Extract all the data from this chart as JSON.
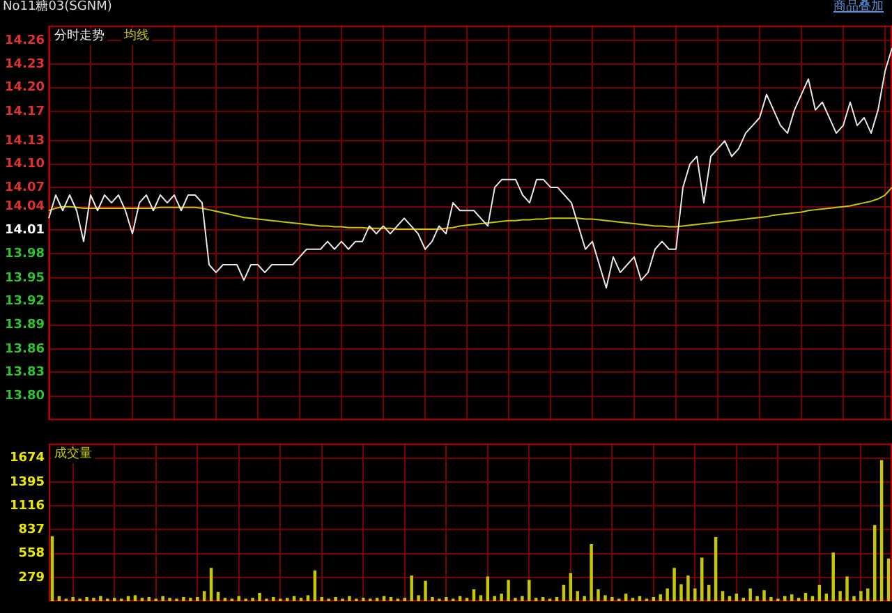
{
  "chart_data": [
    {
      "type": "line",
      "title": "No11糖03(SGNM)",
      "annotations": [
        "商品叠加"
      ],
      "legend": "top left",
      "grid": true,
      "tick_labels": "y",
      "ylim": [
        13.769,
        14.279
      ],
      "yticks": [
        {
          "value": 14.26,
          "label": "14.26"
        },
        {
          "value": 14.229,
          "label": "14.23"
        },
        {
          "value": 14.199,
          "label": "14.20"
        },
        {
          "value": 14.168,
          "label": "14.17"
        },
        {
          "value": 14.13,
          "label": "14.13"
        },
        {
          "value": 14.1,
          "label": "14.10"
        },
        {
          "value": 14.07,
          "label": "14.07"
        },
        {
          "value": 14.045,
          "label": "14.04"
        },
        {
          "value": 14.015,
          "label": "14.01"
        },
        {
          "value": 13.984,
          "label": "13.98"
        },
        {
          "value": 13.953,
          "label": "13.95"
        },
        {
          "value": 13.923,
          "label": "13.92"
        },
        {
          "value": 13.892,
          "label": "13.89"
        },
        {
          "value": 13.861,
          "label": "13.86"
        },
        {
          "value": 13.831,
          "label": "13.83"
        },
        {
          "value": 13.8,
          "label": "13.80"
        }
      ],
      "categories": [
        null,
        null,
        null,
        null,
        null,
        null,
        null,
        null,
        null,
        null,
        null,
        null,
        null,
        null,
        null,
        null,
        null,
        null,
        null,
        null,
        null,
        null,
        null,
        null,
        null,
        null,
        null,
        null,
        null,
        null,
        null,
        null,
        null,
        null,
        null,
        null,
        null,
        null,
        null,
        null,
        null,
        null,
        null,
        null,
        null,
        null,
        null,
        null,
        null,
        null,
        null,
        null,
        null,
        null,
        null,
        null,
        null,
        null,
        null,
        null,
        null,
        null,
        null,
        null,
        null,
        null,
        null,
        null,
        null,
        null,
        null,
        null,
        null,
        null,
        null,
        null,
        null,
        null,
        null,
        null,
        null,
        null,
        null,
        null,
        null,
        null,
        null,
        null,
        null,
        null,
        null,
        null,
        null,
        null,
        null,
        null,
        null,
        null,
        null,
        null,
        null,
        null,
        null,
        null,
        null,
        null,
        null,
        null,
        null,
        null,
        null,
        null,
        null,
        null,
        null,
        null,
        null,
        null,
        null,
        null,
        null,
        null
      ],
      "series": [
        {
          "name": "分时走势",
          "color": "#e8e8e8",
          "values": [
            14.03,
            14.06,
            14.04,
            14.06,
            14.04,
            14.0,
            14.06,
            14.04,
            14.06,
            14.05,
            14.06,
            14.04,
            14.01,
            14.05,
            14.06,
            14.04,
            14.06,
            14.05,
            14.06,
            14.04,
            14.06,
            14.06,
            14.05,
            13.97,
            13.96,
            13.97,
            13.97,
            13.97,
            13.95,
            13.97,
            13.97,
            13.96,
            13.97,
            13.97,
            13.97,
            13.97,
            13.98,
            13.99,
            13.99,
            13.99,
            14.0,
            13.99,
            14.0,
            13.99,
            14.0,
            14.0,
            14.02,
            14.01,
            14.02,
            14.01,
            14.02,
            14.03,
            14.02,
            14.01,
            13.99,
            14.0,
            14.02,
            14.01,
            14.05,
            14.04,
            14.04,
            14.04,
            14.03,
            14.02,
            14.07,
            14.08,
            14.08,
            14.08,
            14.06,
            14.05,
            14.08,
            14.08,
            14.07,
            14.07,
            14.06,
            14.05,
            14.02,
            13.99,
            14.0,
            13.97,
            13.94,
            13.98,
            13.96,
            13.97,
            13.98,
            13.95,
            13.96,
            13.99,
            14.0,
            13.99,
            13.99,
            14.07,
            14.1,
            14.11,
            14.05,
            14.11,
            14.12,
            14.13,
            14.11,
            14.12,
            14.14,
            14.15,
            14.16,
            14.19,
            14.17,
            14.15,
            14.14,
            14.17,
            14.19,
            14.21,
            14.17,
            14.18,
            14.16,
            14.14,
            14.15,
            14.18,
            14.15,
            14.16,
            14.14,
            14.17,
            14.22,
            14.25
          ]
        },
        {
          "name": "均线",
          "color": "#c8c800",
          "values": [
            14.04,
            14.043,
            14.045,
            14.045,
            14.044,
            14.043,
            14.043,
            14.043,
            14.043,
            14.043,
            14.043,
            14.043,
            14.043,
            14.043,
            14.043,
            14.043,
            14.044,
            14.044,
            14.044,
            14.044,
            14.044,
            14.044,
            14.043,
            14.041,
            14.039,
            14.037,
            14.035,
            14.033,
            14.031,
            14.03,
            14.029,
            14.028,
            14.027,
            14.026,
            14.025,
            14.024,
            14.023,
            14.022,
            14.021,
            14.02,
            14.02,
            14.019,
            14.019,
            14.018,
            14.018,
            14.018,
            14.017,
            14.017,
            14.017,
            14.017,
            14.016,
            14.016,
            14.016,
            14.016,
            14.016,
            14.016,
            14.016,
            14.017,
            14.018,
            14.02,
            14.021,
            14.022,
            14.023,
            14.024,
            14.025,
            14.026,
            14.027,
            14.027,
            14.028,
            14.028,
            14.029,
            14.029,
            14.03,
            14.03,
            14.03,
            14.03,
            14.03,
            14.029,
            14.029,
            14.028,
            14.027,
            14.026,
            14.025,
            14.024,
            14.023,
            14.022,
            14.021,
            14.02,
            14.02,
            14.019,
            14.019,
            14.02,
            14.021,
            14.022,
            14.023,
            14.024,
            14.025,
            14.026,
            14.027,
            14.028,
            14.029,
            14.03,
            14.031,
            14.032,
            14.034,
            14.035,
            14.036,
            14.037,
            14.038,
            14.04,
            14.041,
            14.042,
            14.043,
            14.044,
            14.045,
            14.046,
            14.048,
            14.05,
            14.052,
            14.055,
            14.06,
            14.07
          ]
        }
      ]
    },
    {
      "type": "bar",
      "title": "成交量",
      "grid": true,
      "tick_labels": "y",
      "ylim": [
        0,
        1843
      ],
      "yticks": [
        279,
        558,
        837,
        1116,
        1395,
        1674
      ],
      "categories": [
        null,
        null,
        null,
        null,
        null,
        null,
        null,
        null,
        null,
        null,
        null,
        null,
        null,
        null,
        null,
        null,
        null,
        null,
        null,
        null,
        null,
        null,
        null,
        null,
        null,
        null,
        null,
        null,
        null,
        null,
        null,
        null,
        null,
        null,
        null,
        null,
        null,
        null,
        null,
        null,
        null,
        null,
        null,
        null,
        null,
        null,
        null,
        null,
        null,
        null,
        null,
        null,
        null,
        null,
        null,
        null,
        null,
        null,
        null,
        null,
        null,
        null,
        null,
        null,
        null,
        null,
        null,
        null,
        null,
        null,
        null,
        null,
        null,
        null,
        null,
        null,
        null,
        null,
        null,
        null,
        null,
        null,
        null,
        null,
        null,
        null,
        null,
        null,
        null,
        null,
        null,
        null,
        null,
        null,
        null,
        null,
        null,
        null,
        null,
        null,
        null,
        null,
        null,
        null,
        null,
        null,
        null,
        null,
        null,
        null,
        null,
        null,
        null,
        null,
        null,
        null,
        null,
        null,
        null,
        null,
        null,
        null
      ],
      "series": [
        {
          "color": "#c8c800",
          "values": [
            760,
            60,
            30,
            50,
            30,
            50,
            40,
            60,
            30,
            40,
            30,
            60,
            70,
            40,
            50,
            30,
            60,
            40,
            30,
            50,
            40,
            50,
            120,
            390,
            110,
            40,
            30,
            60,
            30,
            40,
            100,
            30,
            50,
            30,
            40,
            60,
            40,
            70,
            360,
            50,
            30,
            50,
            30,
            60,
            30,
            40,
            30,
            40,
            60,
            50,
            30,
            40,
            300,
            70,
            240,
            50,
            30,
            50,
            30,
            60,
            40,
            140,
            70,
            290,
            60,
            90,
            250,
            40,
            60,
            250,
            40,
            50,
            30,
            50,
            190,
            330,
            120,
            60,
            670,
            140,
            70,
            50,
            30,
            90,
            40,
            60,
            30,
            50,
            80,
            150,
            390,
            200,
            300,
            150,
            510,
            190,
            750,
            120,
            60,
            90,
            40,
            150,
            60,
            130,
            50,
            30,
            60,
            80,
            40,
            100,
            60,
            190,
            90,
            570,
            120,
            290,
            60,
            120,
            150,
            890,
            1650,
            500
          ]
        }
      ]
    }
  ]
}
